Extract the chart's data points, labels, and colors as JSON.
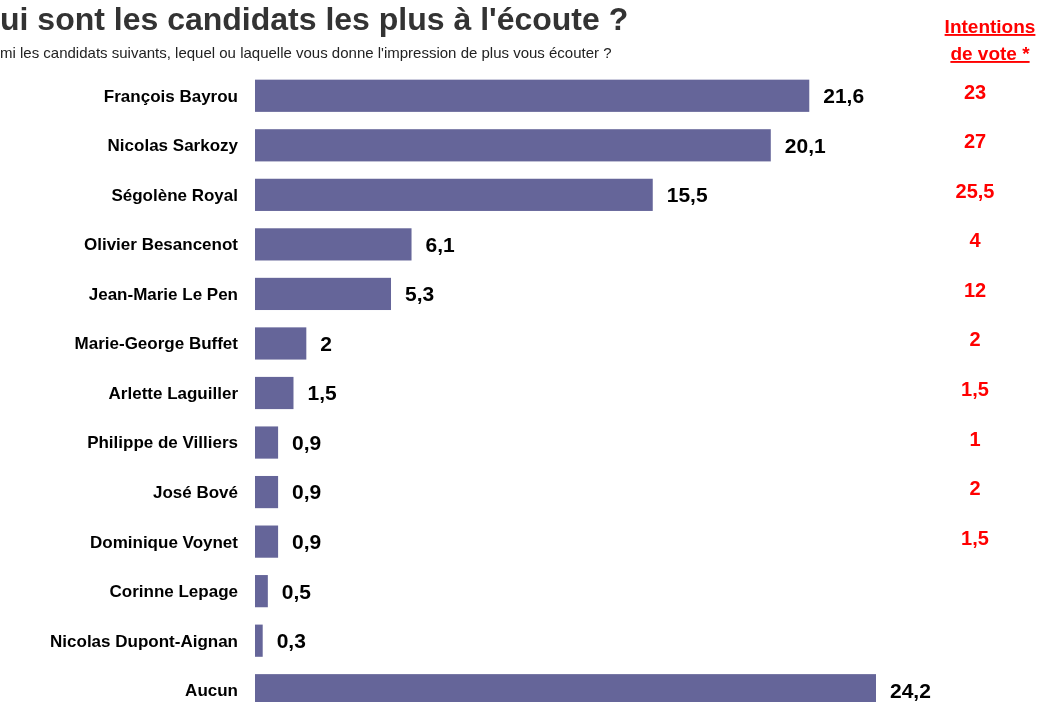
{
  "chart_data": {
    "type": "bar",
    "orientation": "horizontal",
    "title": "ui sont les candidats les plus à l'écoute ?",
    "subtitle": "mi les candidats suivants, lequel ou laquelle vous donne l'impression de plus vous écouter ?",
    "categories": [
      "François Bayrou",
      "Nicolas Sarkozy",
      "Ségolène Royal",
      "Olivier Besancenot",
      "Jean-Marie Le Pen",
      "Marie-George Buffet",
      "Arlette Laguiller",
      "Philippe de Villiers",
      "José Bové",
      "Dominique Voynet",
      "Corinne Lepage",
      "Nicolas Dupont-Aignan",
      "Aucun"
    ],
    "values": [
      21.6,
      20.1,
      15.5,
      6.1,
      5.3,
      2,
      1.5,
      0.9,
      0.9,
      0.9,
      0.5,
      0.3,
      24.2
    ],
    "value_labels": [
      "21,6",
      "20,1",
      "15,5",
      "6,1",
      "5,3",
      "2",
      "1,5",
      "0,9",
      "0,9",
      "0,9",
      "0,5",
      "0,3",
      "24,2"
    ],
    "color": "#656599",
    "annotations": [
      "Intentions de vote *",
      "23",
      "27",
      "25,5",
      "4",
      "12",
      "2",
      "1,5",
      "1",
      "2",
      "1,5"
    ]
  }
}
